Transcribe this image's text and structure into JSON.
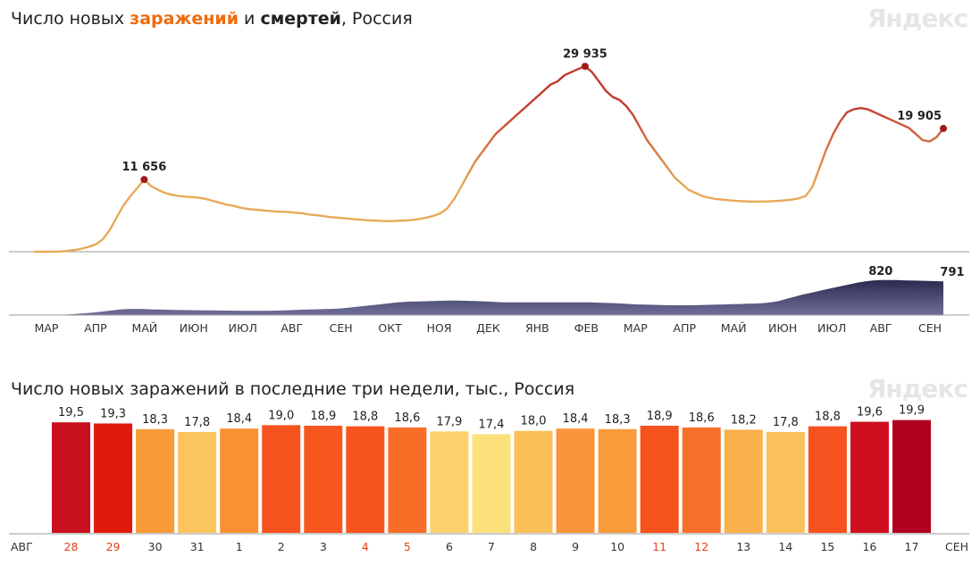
{
  "header": {
    "title_prefix": "Число новых ",
    "title_infections": "заражений",
    "title_mid": " и ",
    "title_deaths": "смертей",
    "title_suffix": ", Россия",
    "logo": "Яндекс"
  },
  "bars_header": {
    "title": "Число новых заражений в последние три недели, тыс., Россия",
    "logo": "Яндекс"
  },
  "chart_data": [
    {
      "type": "line",
      "series": [
        {
          "values": [
            0,
            0,
            0,
            10,
            50,
            150,
            300,
            500,
            800,
            1200,
            2000,
            3500,
            5500,
            7500,
            9000,
            10300,
            11656,
            10600,
            10000,
            9500,
            9200,
            9000,
            8900,
            8800,
            8700,
            8500,
            8200,
            7900,
            7600,
            7400,
            7100,
            6900,
            6800,
            6700,
            6600,
            6500,
            6450,
            6400,
            6300,
            6200,
            6000,
            5900,
            5750,
            5600,
            5500,
            5400,
            5300,
            5200,
            5100,
            5050,
            5000,
            4950,
            4950,
            5000,
            5050,
            5150,
            5300,
            5500,
            5800,
            6200,
            7000,
            8500,
            10500,
            12500,
            14500,
            16000,
            17500,
            19000,
            20000,
            21000,
            22000,
            23000,
            24000,
            25000,
            26000,
            27000,
            27500,
            28500,
            29000,
            29500,
            29935,
            29000,
            27500,
            26000,
            25000,
            24500,
            23500,
            22000,
            20000,
            18000,
            16500,
            15000,
            13500,
            12000,
            11000,
            10000,
            9500,
            9000,
            8700,
            8500,
            8400,
            8300,
            8200,
            8150,
            8100,
            8100,
            8100,
            8150,
            8200,
            8300,
            8400,
            8600,
            9000,
            10500,
            13500,
            16500,
            19000,
            21000,
            22500,
            23000,
            23200,
            23000,
            22500,
            22000,
            21500,
            21000,
            20500,
            20000,
            19000,
            18000,
            17800,
            18500,
            19905
          ],
          "color_low": "#e8a957",
          "color_high": "#c0392b"
        }
      ],
      "annotations": [
        {
          "label": "11 656",
          "value": 11656
        },
        {
          "label": "29 935",
          "value": 29935
        },
        {
          "label": "19 905",
          "value": 19905
        }
      ],
      "ylim": [
        0,
        32000
      ]
    },
    {
      "type": "area",
      "series": [
        {
          "values": [
            0,
            0,
            2,
            5,
            10,
            20,
            35,
            50,
            70,
            90,
            110,
            130,
            140,
            145,
            140,
            135,
            130,
            125,
            120,
            118,
            115,
            112,
            110,
            108,
            106,
            104,
            102,
            100,
            100,
            100,
            102,
            105,
            110,
            118,
            125,
            130,
            135,
            140,
            145,
            155,
            170,
            190,
            210,
            230,
            250,
            270,
            290,
            305,
            315,
            320,
            325,
            330,
            335,
            340,
            340,
            335,
            330,
            325,
            315,
            305,
            300,
            300,
            300,
            300,
            300,
            300,
            300,
            300,
            300,
            300,
            300,
            300,
            290,
            285,
            280,
            270,
            260,
            250,
            245,
            240,
            235,
            230,
            230,
            230,
            230,
            235,
            240,
            245,
            250,
            255,
            260,
            265,
            270,
            280,
            300,
            330,
            380,
            430,
            480,
            520,
            560,
            600,
            640,
            680,
            720,
            760,
            790,
            810,
            820,
            820,
            820,
            815,
            810,
            805,
            800,
            795,
            791
          ],
          "color": "#3d3e6b"
        }
      ],
      "annotations": [
        {
          "label": "820",
          "value": 820
        },
        {
          "label": "791",
          "value": 791
        }
      ],
      "ylim": [
        0,
        900
      ],
      "months": [
        "МАР",
        "АПР",
        "МАЙ",
        "ИЮН",
        "ИЮЛ",
        "АВГ",
        "СЕН",
        "ОКТ",
        "НОЯ",
        "ДЕК",
        "ЯНВ",
        "ФЕВ",
        "МАР",
        "АПР",
        "МАЙ",
        "ИЮН",
        "ИЮЛ",
        "АВГ",
        "СЕН"
      ]
    },
    {
      "type": "bar",
      "unit": "тыс.",
      "start_month": "АВГ",
      "end_month": "СЕН",
      "categories": [
        "28",
        "29",
        "30",
        "31",
        "1",
        "2",
        "3",
        "4",
        "5",
        "6",
        "7",
        "8",
        "9",
        "10",
        "11",
        "12",
        "13",
        "14",
        "15",
        "16",
        "17"
      ],
      "values": [
        19.5,
        19.3,
        18.3,
        17.8,
        18.4,
        19.0,
        18.9,
        18.8,
        18.6,
        17.9,
        17.4,
        18.0,
        18.4,
        18.3,
        18.9,
        18.6,
        18.2,
        17.8,
        18.8,
        19.6,
        19.9
      ],
      "labels": [
        "19,5",
        "19,3",
        "18,3",
        "17,8",
        "18,4",
        "19,0",
        "18,9",
        "18,8",
        "18,6",
        "17,9",
        "17,4",
        "18,0",
        "18,4",
        "18,3",
        "18,9",
        "18,6",
        "18,2",
        "17,8",
        "18,8",
        "19,6",
        "19,9"
      ],
      "weekends": [
        true,
        true,
        false,
        false,
        false,
        false,
        false,
        true,
        true,
        false,
        false,
        false,
        false,
        false,
        true,
        true,
        false,
        false,
        false,
        false,
        false
      ],
      "colors": [
        "#c8101e",
        "#e21a0c",
        "#f99a38",
        "#fcc45e",
        "#f99134",
        "#f6521e",
        "#f7561f",
        "#f7541d",
        "#f86e27",
        "#fcd06a",
        "#fbe07b",
        "#fbbf57",
        "#f9953a",
        "#f99a3b",
        "#f6521e",
        "#f8712a",
        "#fab04b",
        "#fcc15c",
        "#f6521f",
        "#cf0f1f",
        "#b00020"
      ],
      "ylim": [
        0,
        20
      ]
    }
  ]
}
